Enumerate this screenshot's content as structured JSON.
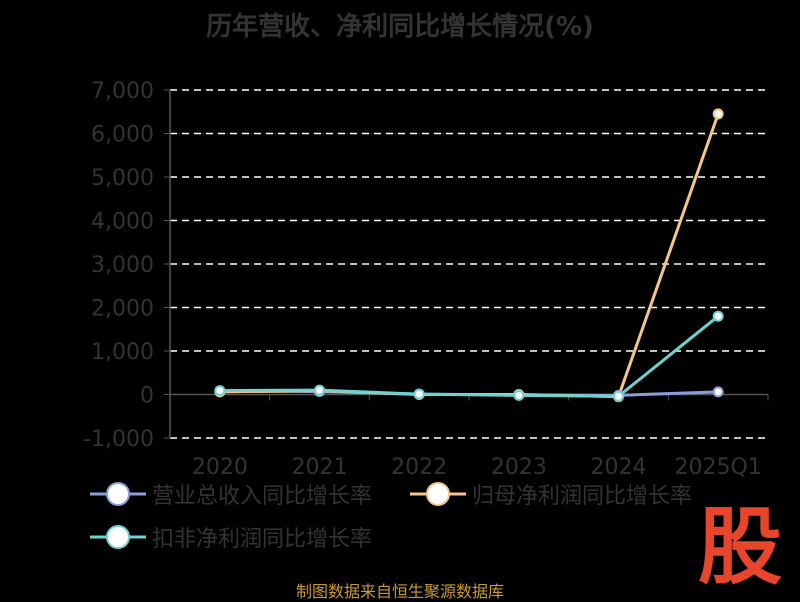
{
  "title": "历年营收、净利同比增长情况(%)",
  "source": "制图数据来自恒生聚源数据库",
  "brand_glyph": "股",
  "colors": {
    "background": "#000000",
    "text": "#333333",
    "grid": "#ffffff",
    "axis": "#555555",
    "revenue": "#8a9fd8",
    "net_profit": "#f5c58a",
    "deducted_profit": "#6cd3d3",
    "brand": "#e8452c",
    "source_text": "#c99a2e"
  },
  "chart_data": {
    "type": "line",
    "title": "历年营收、净利同比增长情况(%)",
    "categories": [
      "2020",
      "2021",
      "2022",
      "2023",
      "2024",
      "2025Q1"
    ],
    "ylim": [
      -1000,
      7000
    ],
    "yticks": [
      -1000,
      0,
      1000,
      2000,
      3000,
      4000,
      5000,
      6000,
      7000
    ],
    "ytick_labels": [
      "-1,000",
      "0",
      "1,000",
      "2,000",
      "3,000",
      "4,000",
      "5,000",
      "6,000",
      "7,000"
    ],
    "grid": true,
    "legend_position": "bottom",
    "series": [
      {
        "name": "营业总收入同比增长率",
        "color": "#8a9fd8",
        "values": [
          80,
          70,
          10,
          -10,
          -20,
          60
        ]
      },
      {
        "name": "归母净利润同比增长率",
        "color": "#f5c58a",
        "values": [
          60,
          90,
          0,
          0,
          -50,
          6450
        ]
      },
      {
        "name": "扣非净利润同比增长率",
        "color": "#6cd3d3",
        "values": [
          90,
          100,
          10,
          -20,
          -40,
          1800
        ]
      }
    ]
  }
}
